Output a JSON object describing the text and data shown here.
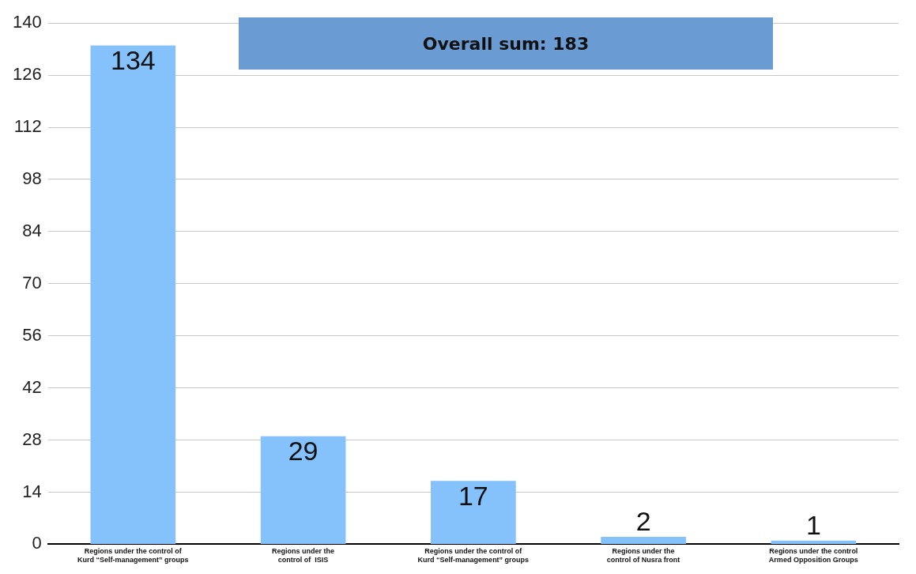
{
  "chart_data": {
    "type": "bar",
    "categories": [
      "Regions under the control of Kurd “Self-management” groups",
      "Regions under the control of  ISIS",
      "Regions under the control of Kurd “Self-management” groups",
      "Regions under the control of Nusra front",
      "Regions under the control Armed Opposition Groups"
    ],
    "values": [
      134,
      29,
      17,
      2,
      1
    ],
    "color": "#85c1fa",
    "ylim": [
      0,
      140
    ],
    "yticks": [
      0,
      14,
      28,
      42,
      56,
      70,
      84,
      98,
      112,
      126,
      140
    ],
    "grid": "y",
    "data_labels": true,
    "annotations": [
      "Overall sum: 183"
    ]
  }
}
